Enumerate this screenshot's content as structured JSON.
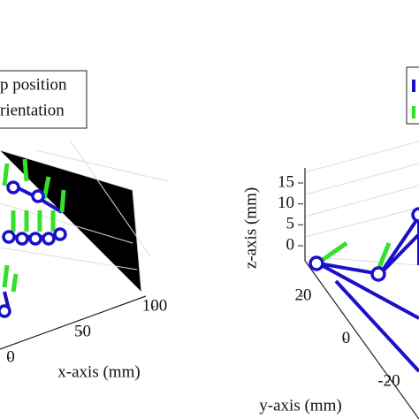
{
  "chart_data": [
    {
      "type": "line3d",
      "xlabel": "x-axis (mm)",
      "xlim": [
        0,
        100
      ],
      "xticks": [
        0,
        50,
        100
      ],
      "legend": [
        "p position",
        "rientation"
      ],
      "legend_colors": [
        "#1a10c8",
        "#33e02a"
      ]
    },
    {
      "type": "line3d",
      "ylabel": "y-axis (mm)",
      "zlabel": "z-axis (mm)",
      "ylim": [
        -20,
        20
      ],
      "yticks": [
        -20,
        0,
        20
      ],
      "zlim": [
        0,
        15
      ],
      "zticks": [
        0,
        5,
        10,
        15
      ],
      "legend_colors": [
        "#1a10c8",
        "#33e02a"
      ]
    }
  ]
}
